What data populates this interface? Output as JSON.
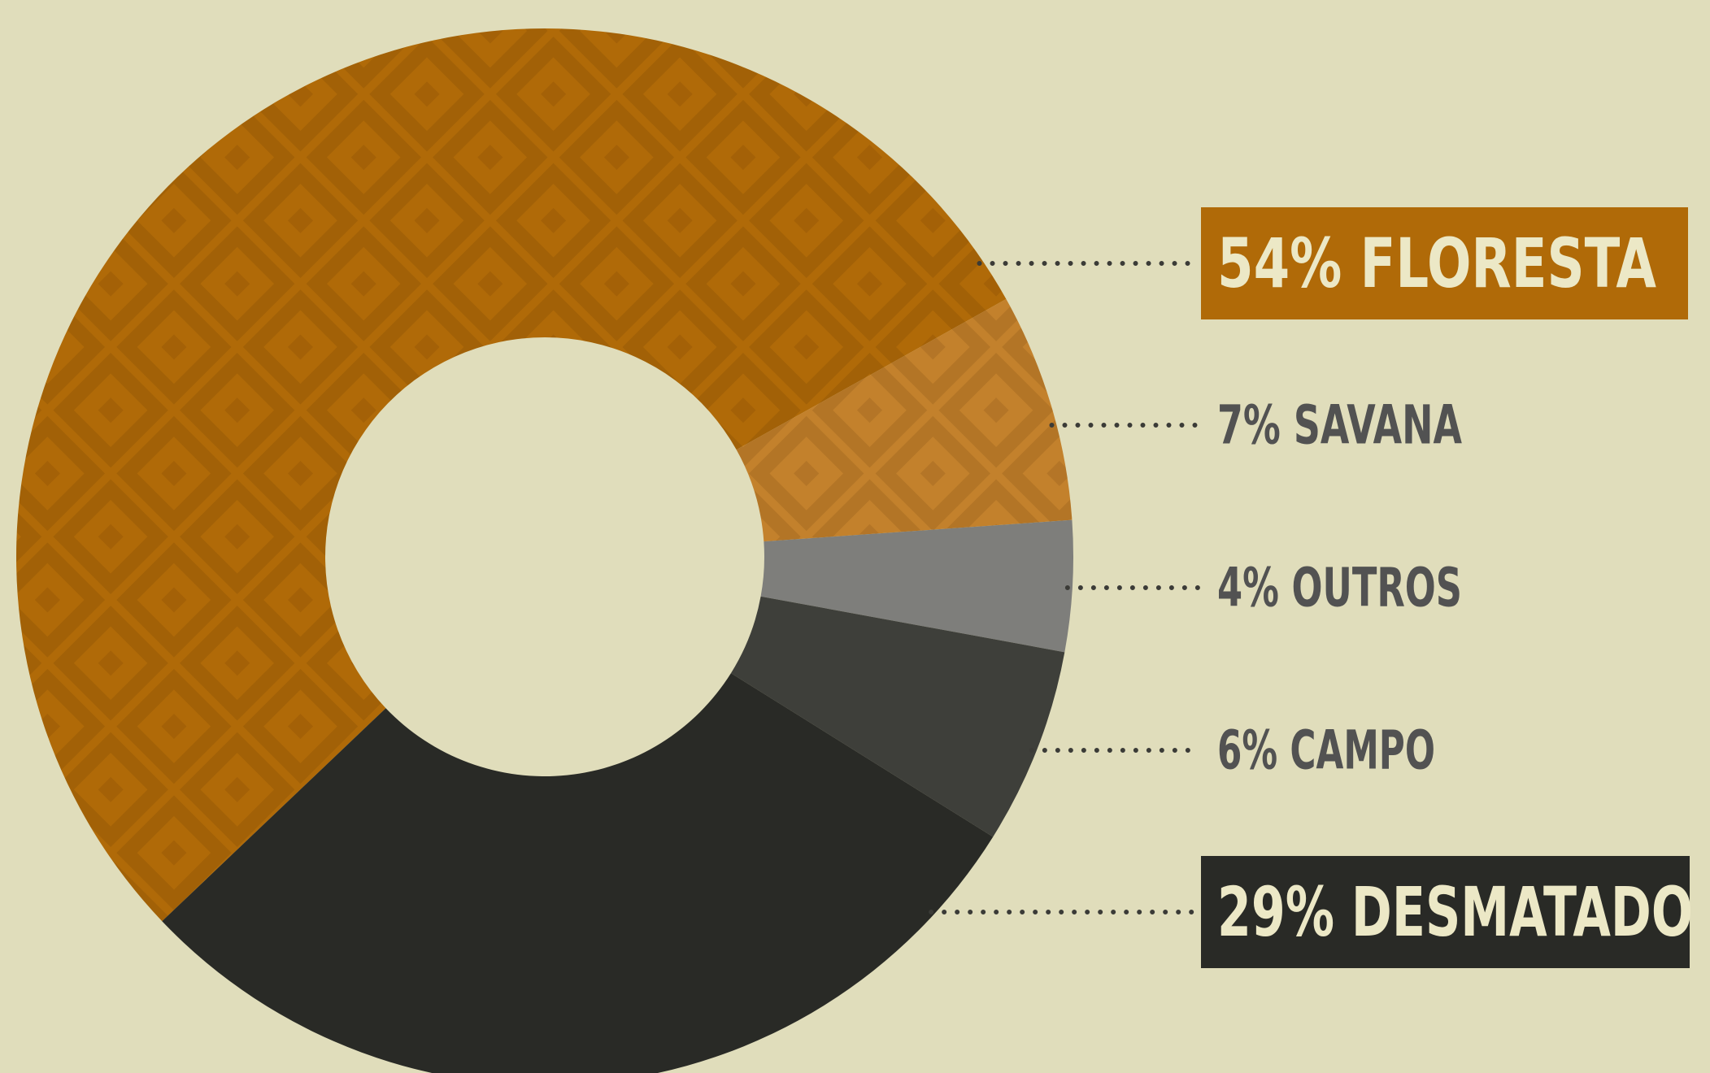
{
  "chart_data": {
    "type": "pie",
    "donut": true,
    "slices": [
      {
        "label": "54% FLORESTA",
        "name": "FLORESTA",
        "value": 54,
        "color": "#b06a08",
        "highlight": true
      },
      {
        "label": "7% SAVANA",
        "name": "SAVANA",
        "value": 7,
        "color": "#c3812c",
        "highlight": false
      },
      {
        "label": "4% OUTROS",
        "name": "OUTROS",
        "value": 4,
        "color": "#7e7e7b",
        "highlight": false
      },
      {
        "label": "6% CAMPO",
        "name": "CAMPO",
        "value": 6,
        "color": "#3e3f3a",
        "highlight": false
      },
      {
        "label": "29% DESMATADO",
        "name": "DESMATADO",
        "value": 29,
        "color": "#292a26",
        "highlight": true
      }
    ],
    "label_text_color": "#525252",
    "highlight_text_color": "#ece8c6",
    "background": "#e0ddbb"
  }
}
